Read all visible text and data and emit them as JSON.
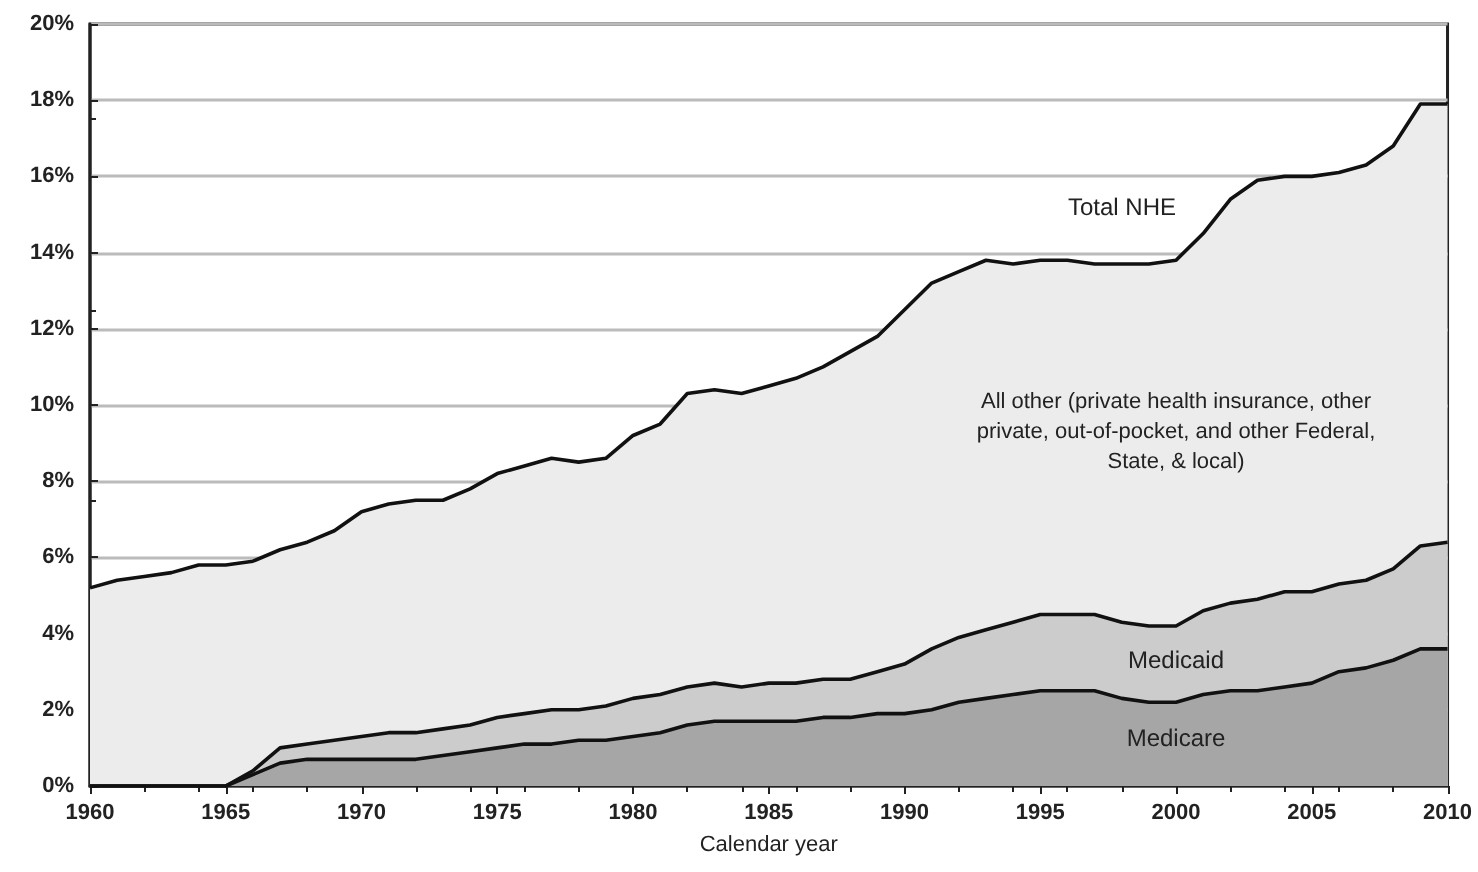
{
  "chart_data": {
    "type": "area",
    "stacked": true,
    "xlabel": "Calendar year",
    "x": [
      1960,
      1961,
      1962,
      1963,
      1964,
      1965,
      1966,
      1967,
      1968,
      1969,
      1970,
      1971,
      1972,
      1973,
      1974,
      1975,
      1976,
      1977,
      1978,
      1979,
      1980,
      1981,
      1982,
      1983,
      1984,
      1985,
      1986,
      1987,
      1988,
      1989,
      1990,
      1991,
      1992,
      1993,
      1994,
      1995,
      1996,
      1997,
      1998,
      1999,
      2000,
      2001,
      2002,
      2003,
      2004,
      2005,
      2006,
      2007,
      2008,
      2009,
      2010
    ],
    "series": [
      {
        "name": "Medicare",
        "color": "#a6a6a6",
        "values": [
          0,
          0,
          0,
          0,
          0,
          0,
          0.3,
          0.6,
          0.7,
          0.7,
          0.7,
          0.7,
          0.7,
          0.8,
          0.9,
          1.0,
          1.1,
          1.1,
          1.2,
          1.2,
          1.3,
          1.4,
          1.6,
          1.7,
          1.7,
          1.7,
          1.7,
          1.8,
          1.8,
          1.9,
          1.9,
          2.0,
          2.2,
          2.3,
          2.4,
          2.5,
          2.5,
          2.5,
          2.3,
          2.2,
          2.2,
          2.4,
          2.5,
          2.5,
          2.6,
          2.7,
          3.0,
          3.1,
          3.3,
          3.6,
          3.6
        ]
      },
      {
        "name": "Medicaid",
        "color": "#cccccc",
        "values": [
          0,
          0,
          0,
          0,
          0,
          0,
          0.1,
          0.4,
          0.4,
          0.5,
          0.6,
          0.7,
          0.7,
          0.7,
          0.7,
          0.8,
          0.8,
          0.9,
          0.8,
          0.9,
          1.0,
          1.0,
          1.0,
          1.0,
          0.9,
          1.0,
          1.0,
          1.0,
          1.0,
          1.1,
          1.3,
          1.6,
          1.7,
          1.8,
          1.9,
          2.0,
          2.0,
          2.0,
          2.0,
          2.0,
          2.0,
          2.2,
          2.3,
          2.4,
          2.5,
          2.4,
          2.3,
          2.3,
          2.4,
          2.7,
          2.8
        ]
      },
      {
        "name": "All other (private health insurance, other private, out-of-pocket, and other Federal, State, & local)",
        "color": "#ececec",
        "values": [
          5.2,
          5.4,
          5.5,
          5.6,
          5.8,
          5.8,
          5.5,
          5.2,
          5.3,
          5.5,
          5.9,
          6.0,
          6.1,
          6.0,
          6.2,
          6.4,
          6.5,
          6.6,
          6.5,
          6.5,
          6.9,
          7.1,
          7.7,
          7.7,
          7.7,
          7.8,
          8.0,
          8.2,
          8.6,
          8.8,
          9.3,
          9.6,
          9.6,
          9.7,
          9.4,
          9.3,
          9.3,
          9.2,
          9.4,
          9.5,
          9.6,
          9.9,
          10.6,
          11.0,
          10.9,
          10.9,
          10.8,
          10.9,
          11.1,
          11.6,
          11.5
        ]
      }
    ],
    "annotations": [
      "Total NHE"
    ],
    "xlim": [
      1960,
      2010
    ],
    "xticks": [
      1960,
      1965,
      1970,
      1975,
      1980,
      1985,
      1990,
      1995,
      2000,
      2005,
      2010
    ],
    "ylim": [
      0,
      20
    ],
    "yticks": [
      {
        "value": 0,
        "label": "0%"
      },
      {
        "value": 2,
        "label": "2%"
      },
      {
        "value": 4,
        "label": "4%"
      },
      {
        "value": 6,
        "label": "6%"
      },
      {
        "value": 8,
        "label": "8%"
      },
      {
        "value": 10,
        "label": "10%"
      },
      {
        "value": 12,
        "label": "12%"
      },
      {
        "value": 14,
        "label": "14%"
      },
      {
        "value": 16,
        "label": "16%"
      },
      {
        "value": 18,
        "label": "18%"
      },
      {
        "value": 20,
        "label": "20%"
      }
    ],
    "grid": "y",
    "legend": false,
    "marker": "none"
  }
}
